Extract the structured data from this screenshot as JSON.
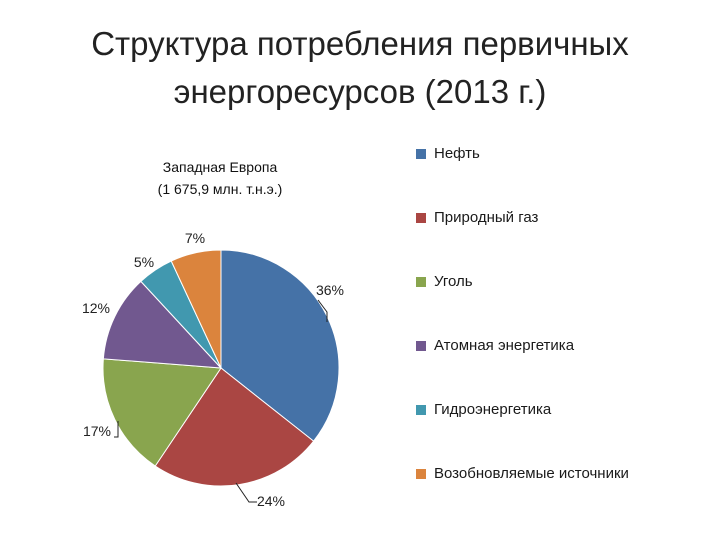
{
  "slide": {
    "title_line1": "Структура потребления первичных",
    "title_line2": "энергоресурсов (2013 г.)"
  },
  "chart_data": {
    "type": "pie",
    "title_line1": "Западная Европа",
    "title_line2": "(1 675,9 млн. т.н.э.)",
    "legend_position": "right",
    "slices": [
      {
        "name": "Нефть",
        "value": 36,
        "label": "36%",
        "color": "#4572a7"
      },
      {
        "name": "Природный газ",
        "value": 24,
        "label": "24%",
        "color": "#aa4643"
      },
      {
        "name": "Уголь",
        "value": 17,
        "label": "17%",
        "color": "#89a54e"
      },
      {
        "name": "Атомная энергетика",
        "value": 12,
        "label": "12%",
        "color": "#71588f"
      },
      {
        "name": "Гидроэнергетика",
        "value": 5,
        "label": "5%",
        "color": "#4198af"
      },
      {
        "name": "Возобновляемые источники",
        "value": 7,
        "label": "7%",
        "color": "#db843d"
      }
    ]
  }
}
